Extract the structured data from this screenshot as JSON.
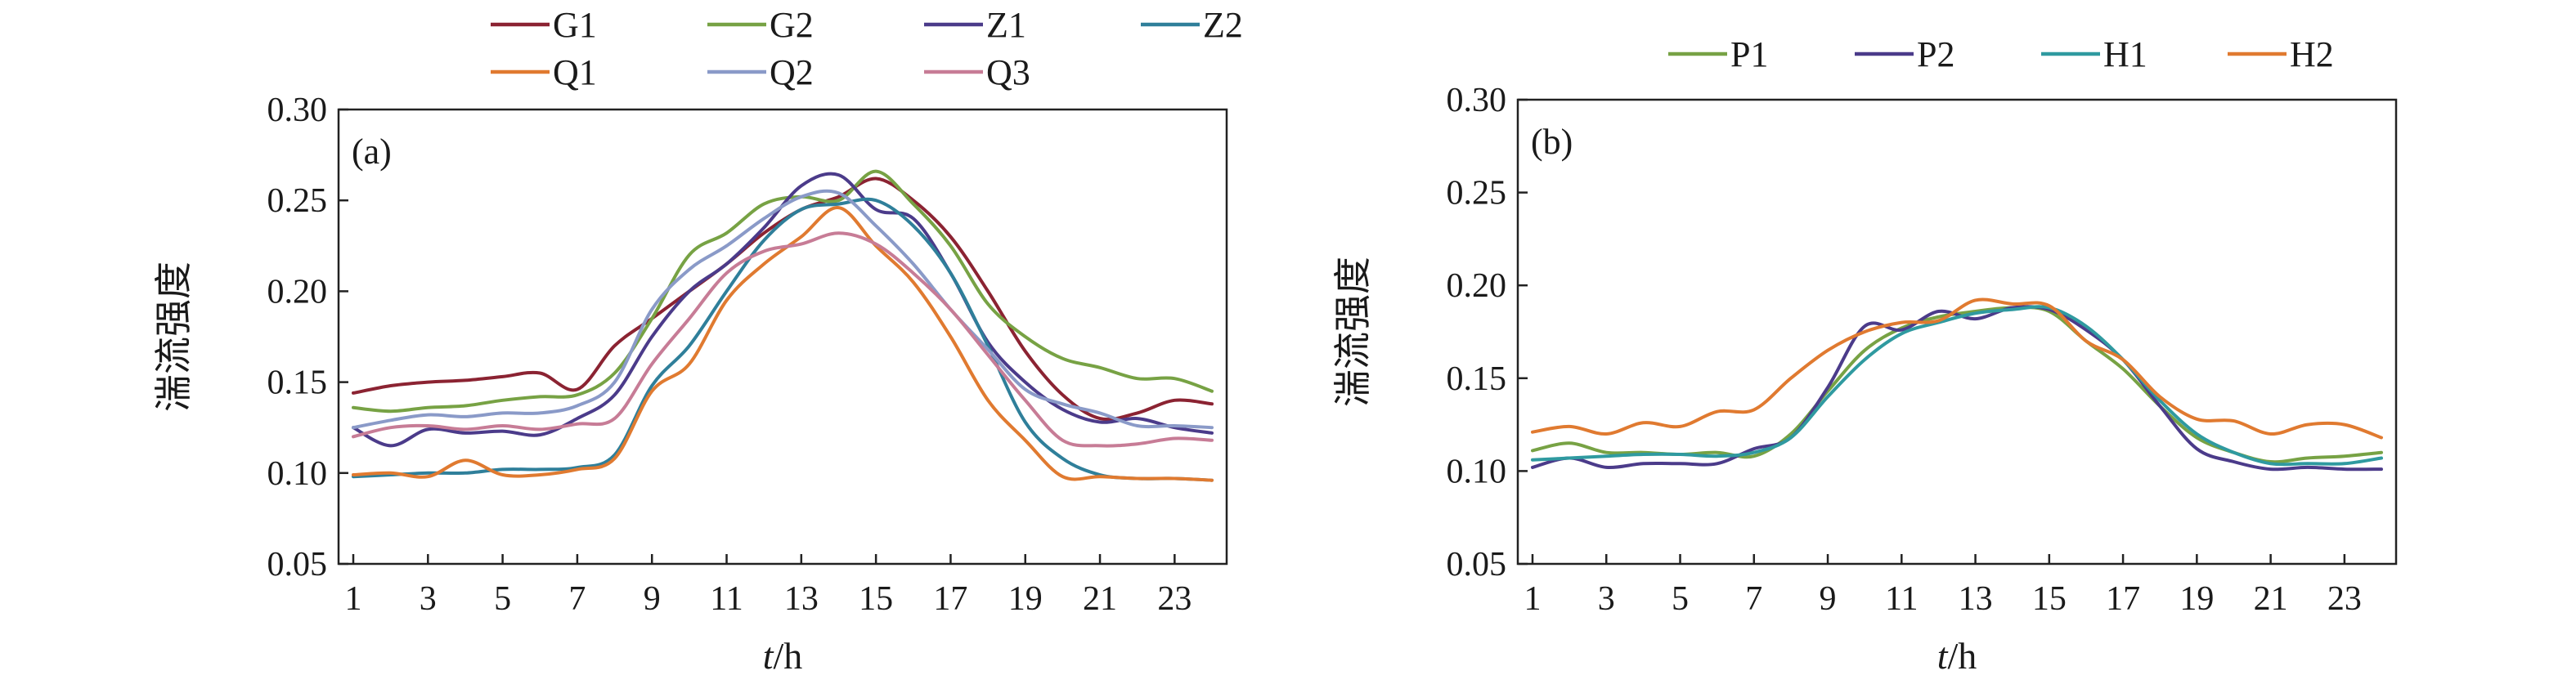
{
  "chart_data": [
    {
      "type": "line",
      "panel_label": "(a)",
      "xlabel_italic": "t",
      "xlabel_unit": "/h",
      "ylabel": "湍流强度",
      "xlim": [
        1,
        24
      ],
      "ylim": [
        0.05,
        0.3
      ],
      "x_ticks": [
        "1",
        "3",
        "5",
        "7",
        "9",
        "11",
        "13",
        "15",
        "17",
        "19",
        "21",
        "23"
      ],
      "y_ticks": [
        "0.05",
        "0.10",
        "0.15",
        "0.20",
        "0.25",
        "0.30"
      ],
      "legend_position": "top",
      "x": [
        1,
        2,
        3,
        4,
        5,
        6,
        7,
        8,
        9,
        10,
        11,
        12,
        13,
        14,
        15,
        16,
        17,
        18,
        19,
        20,
        21,
        22,
        23,
        24
      ],
      "series": [
        {
          "name": "G1",
          "color": "#8b2332",
          "values": [
            0.144,
            0.148,
            0.15,
            0.151,
            0.153,
            0.155,
            0.146,
            0.17,
            0.185,
            0.2,
            0.215,
            0.232,
            0.245,
            0.252,
            0.262,
            0.25,
            0.23,
            0.2,
            0.167,
            0.143,
            0.13,
            0.133,
            0.14,
            0.138
          ]
        },
        {
          "name": "G2",
          "color": "#77a244",
          "values": [
            0.136,
            0.134,
            0.136,
            0.137,
            0.14,
            0.142,
            0.143,
            0.155,
            0.185,
            0.22,
            0.232,
            0.248,
            0.252,
            0.25,
            0.266,
            0.248,
            0.225,
            0.193,
            0.175,
            0.163,
            0.158,
            0.152,
            0.152,
            0.145
          ]
        },
        {
          "name": "Z1",
          "color": "#4b3b8a",
          "values": [
            0.125,
            0.115,
            0.124,
            0.122,
            0.123,
            0.121,
            0.13,
            0.143,
            0.175,
            0.2,
            0.215,
            0.235,
            0.258,
            0.264,
            0.245,
            0.24,
            0.21,
            0.172,
            0.15,
            0.135,
            0.128,
            0.13,
            0.125,
            0.122
          ]
        },
        {
          "name": "Z2",
          "color": "#2f7f9a",
          "values": [
            0.098,
            0.099,
            0.1,
            0.1,
            0.102,
            0.102,
            0.103,
            0.11,
            0.148,
            0.17,
            0.2,
            0.228,
            0.245,
            0.248,
            0.25,
            0.236,
            0.21,
            0.17,
            0.128,
            0.108,
            0.099,
            0.097,
            0.097,
            0.096
          ]
        },
        {
          "name": "Q1",
          "color": "#e07a30",
          "values": [
            0.099,
            0.1,
            0.098,
            0.107,
            0.099,
            0.099,
            0.102,
            0.108,
            0.145,
            0.16,
            0.195,
            0.215,
            0.23,
            0.246,
            0.225,
            0.205,
            0.175,
            0.14,
            0.118,
            0.098,
            0.098,
            0.097,
            0.097,
            0.096
          ]
        },
        {
          "name": "Q2",
          "color": "#8a9ac8",
          "values": [
            0.125,
            0.129,
            0.132,
            0.131,
            0.133,
            0.133,
            0.137,
            0.15,
            0.19,
            0.212,
            0.225,
            0.24,
            0.252,
            0.254,
            0.236,
            0.215,
            0.19,
            0.168,
            0.146,
            0.138,
            0.133,
            0.126,
            0.126,
            0.125
          ]
        },
        {
          "name": "Q3",
          "color": "#c77c96",
          "values": [
            0.12,
            0.125,
            0.126,
            0.124,
            0.126,
            0.124,
            0.127,
            0.13,
            0.16,
            0.185,
            0.21,
            0.222,
            0.226,
            0.232,
            0.226,
            0.21,
            0.19,
            0.165,
            0.14,
            0.118,
            0.115,
            0.116,
            0.119,
            0.118
          ]
        }
      ]
    },
    {
      "type": "line",
      "panel_label": "(b)",
      "xlabel_italic": "t",
      "xlabel_unit": "/h",
      "ylabel": "湍流强度",
      "xlim": [
        1,
        24
      ],
      "ylim": [
        0.05,
        0.3
      ],
      "x_ticks": [
        "1",
        "3",
        "5",
        "7",
        "9",
        "11",
        "13",
        "15",
        "17",
        "19",
        "21",
        "23"
      ],
      "y_ticks": [
        "0.05",
        "0.10",
        "0.15",
        "0.20",
        "0.25",
        "0.30"
      ],
      "legend_position": "top",
      "x": [
        1,
        2,
        3,
        4,
        5,
        6,
        7,
        8,
        9,
        10,
        11,
        12,
        13,
        14,
        15,
        16,
        17,
        18,
        19,
        20,
        21,
        22,
        23,
        24
      ],
      "series": [
        {
          "name": "P1",
          "color": "#77a244",
          "values": [
            0.111,
            0.115,
            0.11,
            0.11,
            0.109,
            0.11,
            0.108,
            0.12,
            0.143,
            0.165,
            0.177,
            0.183,
            0.186,
            0.188,
            0.186,
            0.17,
            0.155,
            0.135,
            0.118,
            0.11,
            0.105,
            0.107,
            0.108,
            0.11
          ]
        },
        {
          "name": "P2",
          "color": "#4b3b8a",
          "values": [
            0.102,
            0.107,
            0.102,
            0.104,
            0.104,
            0.104,
            0.112,
            0.118,
            0.145,
            0.178,
            0.176,
            0.186,
            0.182,
            0.188,
            0.187,
            0.176,
            0.16,
            0.135,
            0.112,
            0.105,
            0.101,
            0.102,
            0.101,
            0.101
          ]
        },
        {
          "name": "H1",
          "color": "#2f9aa0",
          "values": [
            0.106,
            0.107,
            0.108,
            0.109,
            0.109,
            0.108,
            0.11,
            0.118,
            0.14,
            0.16,
            0.174,
            0.18,
            0.185,
            0.187,
            0.188,
            0.178,
            0.16,
            0.138,
            0.12,
            0.11,
            0.104,
            0.104,
            0.104,
            0.107
          ]
        },
        {
          "name": "H2",
          "color": "#e07a30",
          "values": [
            0.121,
            0.124,
            0.12,
            0.126,
            0.124,
            0.132,
            0.133,
            0.15,
            0.165,
            0.175,
            0.18,
            0.181,
            0.192,
            0.19,
            0.189,
            0.17,
            0.16,
            0.14,
            0.128,
            0.127,
            0.12,
            0.125,
            0.125,
            0.118
          ]
        }
      ]
    }
  ]
}
